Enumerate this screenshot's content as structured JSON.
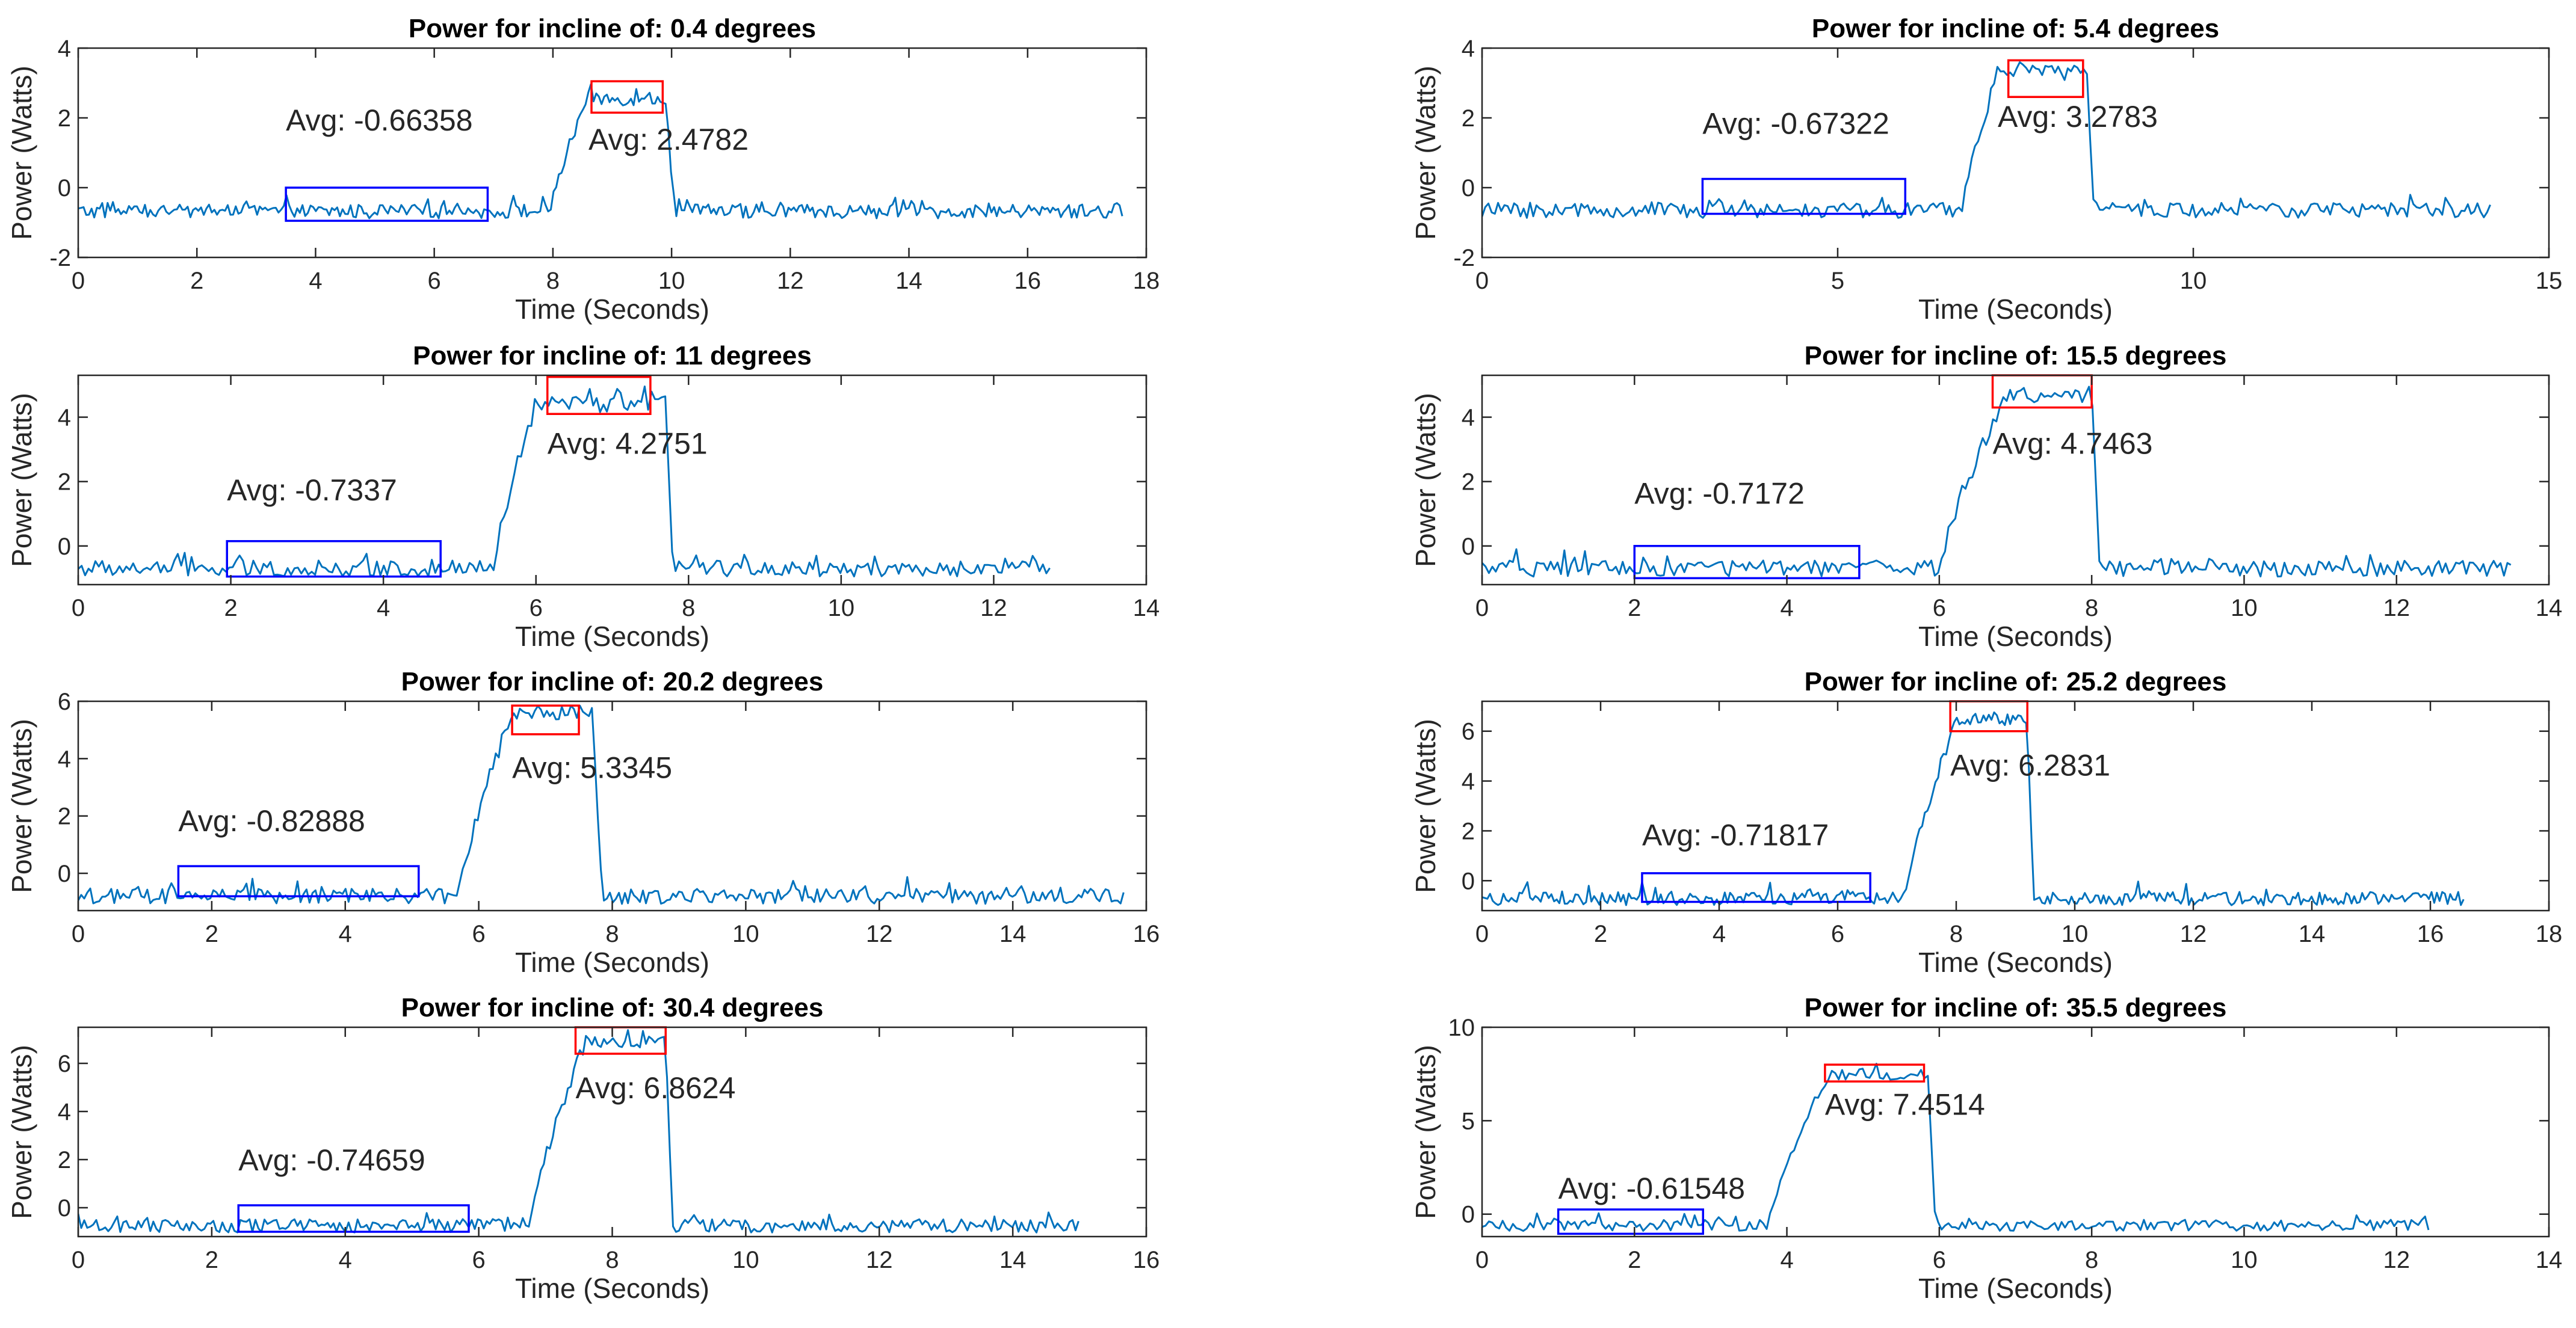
{
  "colors": {
    "trace": "#0072bd",
    "low_box": "#0000ff",
    "high_box": "#ff0000",
    "axis": "#262626"
  },
  "chart_data": [
    {
      "type": "line",
      "title": "Power for incline of: 0.4 degrees",
      "xlabel": "Time (Seconds)",
      "ylabel": "Power (Watts)",
      "xlim": [
        0,
        18
      ],
      "ylim": [
        -2,
        4
      ],
      "xticks": [
        0,
        2,
        4,
        6,
        8,
        10,
        12,
        14,
        16,
        18
      ],
      "yticks": [
        -2,
        0,
        2,
        4
      ],
      "signal": {
        "t_end": 17.6,
        "baseline": -0.68,
        "rise_start": 7.95,
        "rise_end": 8.6,
        "peak": 2.55,
        "fall_start": 9.9,
        "fall_end": 10.05,
        "noise": 0.2
      },
      "low_box": {
        "x": [
          3.5,
          6.9
        ],
        "y": [
          -0.95,
          0.0
        ]
      },
      "high_box": {
        "x": [
          8.65,
          9.85
        ],
        "y": [
          2.15,
          3.05
        ]
      },
      "low_label": {
        "text": "Avg: -0.66358",
        "x": 3.5,
        "y": 1.95
      },
      "high_label": {
        "text": "Avg: 2.4782",
        "x": 8.6,
        "y": 1.4
      }
    },
    {
      "type": "line",
      "title": "Power for incline of: 5.4 degrees",
      "xlabel": "Time (Seconds)",
      "ylabel": "Power (Watts)",
      "xlim": [
        0,
        15
      ],
      "ylim": [
        -2,
        4
      ],
      "xticks": [
        0,
        5,
        10,
        15
      ],
      "yticks": [
        -2,
        0,
        2,
        4
      ],
      "signal": {
        "t_end": 14.2,
        "baseline": -0.65,
        "rise_start": 6.75,
        "rise_end": 7.25,
        "peak": 3.3,
        "fall_start": 8.5,
        "fall_end": 8.6,
        "noise": 0.22
      },
      "low_box": {
        "x": [
          3.1,
          5.95
        ],
        "y": [
          -0.75,
          0.25
        ]
      },
      "high_box": {
        "x": [
          7.4,
          8.45
        ],
        "y": [
          2.6,
          3.65
        ]
      },
      "low_label": {
        "text": "Avg: -0.67322",
        "x": 3.1,
        "y": 1.85
      },
      "high_label": {
        "text": "Avg: 3.2783",
        "x": 7.25,
        "y": 2.05
      }
    },
    {
      "type": "line",
      "title": "Power for incline of: 11 degrees",
      "xlabel": "Time (Seconds)",
      "ylabel": "Power (Watts)",
      "xlim": [
        0,
        14
      ],
      "ylim": [
        -1.2,
        5.3
      ],
      "xticks": [
        0,
        2,
        4,
        6,
        8,
        10,
        12,
        14
      ],
      "yticks": [
        0,
        2,
        4
      ],
      "signal": {
        "t_end": 12.75,
        "baseline": -0.7,
        "rise_start": 5.45,
        "rise_end": 6.0,
        "peak": 4.4,
        "fall_start": 7.7,
        "fall_end": 7.8,
        "noise": 0.25
      },
      "low_box": {
        "x": [
          1.95,
          4.75
        ],
        "y": [
          -0.95,
          0.15
        ]
      },
      "high_box": {
        "x": [
          6.15,
          7.5
        ],
        "y": [
          4.1,
          5.25
        ]
      },
      "low_label": {
        "text": "Avg: -0.7337",
        "x": 1.95,
        "y": 1.75
      },
      "high_label": {
        "text": "Avg: 4.2751",
        "x": 6.15,
        "y": 3.2
      }
    },
    {
      "type": "line",
      "title": "Power for incline of: 15.5 degrees",
      "xlabel": "Time (Seconds)",
      "ylabel": "Power (Watts)",
      "xlim": [
        0,
        14
      ],
      "ylim": [
        -1.2,
        5.3
      ],
      "xticks": [
        0,
        2,
        4,
        6,
        8,
        10,
        12,
        14
      ],
      "yticks": [
        0,
        2,
        4
      ],
      "signal": {
        "t_end": 13.5,
        "baseline": -0.7,
        "rise_start": 6.0,
        "rise_end": 6.9,
        "peak": 4.7,
        "fall_start": 8.0,
        "fall_end": 8.1,
        "noise": 0.25
      },
      "low_box": {
        "x": [
          2.0,
          4.95
        ],
        "y": [
          -1.0,
          0.0
        ]
      },
      "high_box": {
        "x": [
          6.7,
          8.0
        ],
        "y": [
          4.3,
          5.3
        ]
      },
      "low_label": {
        "text": "Avg: -0.7172",
        "x": 2.0,
        "y": 1.65
      },
      "high_label": {
        "text": "Avg: 4.7463",
        "x": 6.7,
        "y": 3.2
      }
    },
    {
      "type": "line",
      "title": "Power for incline of: 20.2 degrees",
      "xlabel": "Time (Seconds)",
      "ylabel": "Power (Watts)",
      "xlim": [
        0,
        16
      ],
      "ylim": [
        -1.3,
        6
      ],
      "xticks": [
        0,
        2,
        4,
        6,
        8,
        10,
        12,
        14,
        16
      ],
      "yticks": [
        0,
        2,
        4,
        6
      ],
      "signal": {
        "t_end": 15.7,
        "baseline": -0.8,
        "rise_start": 5.7,
        "rise_end": 6.5,
        "peak": 5.6,
        "fall_start": 7.7,
        "fall_end": 7.85,
        "noise": 0.27
      },
      "low_box": {
        "x": [
          1.5,
          5.1
        ],
        "y": [
          -0.8,
          0.25
        ]
      },
      "high_box": {
        "x": [
          6.5,
          7.5
        ],
        "y": [
          4.85,
          5.85
        ]
      },
      "low_label": {
        "text": "Avg: -0.82888",
        "x": 1.5,
        "y": 1.85
      },
      "high_label": {
        "text": "Avg: 5.3345",
        "x": 6.5,
        "y": 3.7
      }
    },
    {
      "type": "line",
      "title": "Power for incline of: 25.2 degrees",
      "xlabel": "Time (Seconds)",
      "ylabel": "Power (Watts)",
      "xlim": [
        0,
        18
      ],
      "ylim": [
        -1.2,
        7.2
      ],
      "xticks": [
        0,
        2,
        4,
        6,
        8,
        10,
        12,
        14,
        16,
        18
      ],
      "yticks": [
        0,
        2,
        4,
        6
      ],
      "signal": {
        "t_end": 16.6,
        "baseline": -0.72,
        "rise_start": 7.15,
        "rise_end": 8.0,
        "peak": 6.5,
        "fall_start": 9.2,
        "fall_end": 9.3,
        "noise": 0.27
      },
      "low_box": {
        "x": [
          2.7,
          6.55
        ],
        "y": [
          -0.85,
          0.3
        ]
      },
      "high_box": {
        "x": [
          7.9,
          9.2
        ],
        "y": [
          6.0,
          7.2
        ]
      },
      "low_label": {
        "text": "Avg: -0.71817",
        "x": 2.7,
        "y": 1.85
      },
      "high_label": {
        "text": "Avg: 6.2831",
        "x": 7.9,
        "y": 4.65
      }
    },
    {
      "type": "line",
      "title": "Power for incline of: 30.4 degrees",
      "xlabel": "Time (Seconds)",
      "ylabel": "Power (Watts)",
      "xlim": [
        0,
        16
      ],
      "ylim": [
        -1.2,
        7.5
      ],
      "xticks": [
        0,
        2,
        4,
        6,
        8,
        10,
        12,
        14,
        16
      ],
      "yticks": [
        0,
        2,
        4,
        6
      ],
      "signal": {
        "t_end": 15.0,
        "baseline": -0.75,
        "rise_start": 6.75,
        "rise_end": 7.6,
        "peak": 6.9,
        "fall_start": 8.8,
        "fall_end": 8.9,
        "noise": 0.28
      },
      "low_box": {
        "x": [
          2.4,
          5.85
        ],
        "y": [
          -1.0,
          0.1
        ]
      },
      "high_box": {
        "x": [
          7.45,
          8.8
        ],
        "y": [
          6.4,
          7.5
        ]
      },
      "low_label": {
        "text": "Avg: -0.74659",
        "x": 2.4,
        "y": 2.0
      },
      "high_label": {
        "text": "Avg: 6.8624",
        "x": 7.45,
        "y": 5.0
      }
    },
    {
      "type": "line",
      "title": "Power for incline of: 35.5 degrees",
      "xlabel": "Time (Seconds)",
      "ylabel": "Power (Watts)",
      "xlim": [
        0,
        14
      ],
      "ylim": [
        -1.2,
        10
      ],
      "xticks": [
        0,
        2,
        4,
        6,
        8,
        10,
        12,
        14
      ],
      "yticks": [
        0,
        5,
        10
      ],
      "signal": {
        "t_end": 12.45,
        "baseline": -0.6,
        "rise_start": 3.75,
        "rise_end": 4.55,
        "peak": 7.5,
        "fall_start": 5.85,
        "fall_end": 5.95,
        "noise": 0.3
      },
      "low_box": {
        "x": [
          1.0,
          2.9
        ],
        "y": [
          -1.05,
          0.25
        ]
      },
      "high_box": {
        "x": [
          4.5,
          5.8
        ],
        "y": [
          7.1,
          8.0
        ]
      },
      "low_label": {
        "text": "Avg: -0.61548",
        "x": 1.0,
        "y": 1.4
      },
      "high_label": {
        "text": "Avg: 7.4514",
        "x": 4.5,
        "y": 5.9
      }
    }
  ]
}
